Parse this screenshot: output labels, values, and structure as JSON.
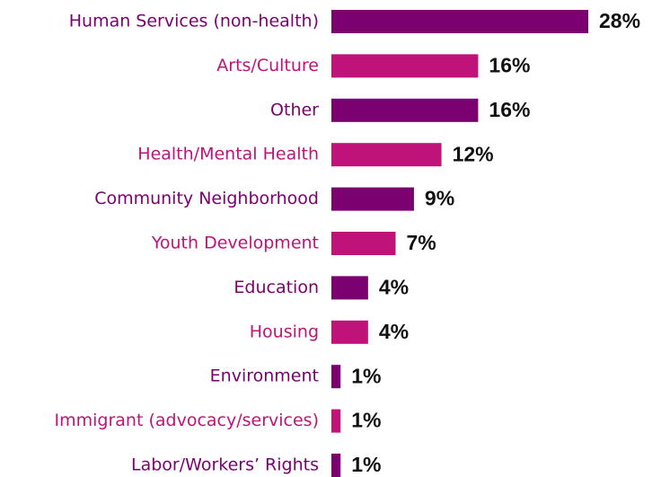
{
  "chart_data": {
    "type": "bar",
    "categories": [
      "Human Services (non-health)",
      "Arts/Culture",
      "Other",
      "Health/Mental Health",
      "Community Neighborhood",
      "Youth Development",
      "Education",
      "Housing",
      "Environment",
      "Immigrant (advocacy/services)",
      "Labor/Workers’ Rights"
    ],
    "values": [
      28,
      16,
      16,
      12,
      9,
      7,
      4,
      4,
      1,
      1,
      1
    ],
    "value_labels": [
      "28%",
      "16%",
      "16%",
      "12%",
      "9%",
      "7%",
      "4%",
      "4%",
      "1%",
      "1%",
      "1%"
    ],
    "colors": [
      "#7b0070",
      "#c0137a",
      "#7b0070",
      "#c0137a",
      "#7b0070",
      "#c0137a",
      "#7b0070",
      "#c0137a",
      "#7b0070",
      "#c0137a",
      "#7b0070"
    ]
  }
}
